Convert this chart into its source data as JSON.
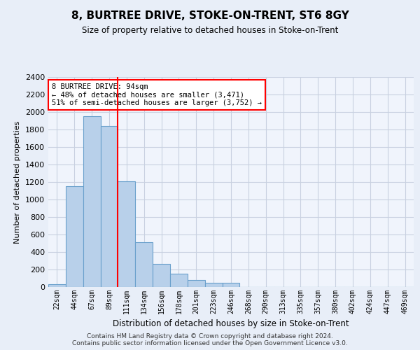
{
  "title": "8, BURTREE DRIVE, STOKE-ON-TRENT, ST6 8GY",
  "subtitle": "Size of property relative to detached houses in Stoke-on-Trent",
  "xlabel": "Distribution of detached houses by size in Stoke-on-Trent",
  "ylabel": "Number of detached properties",
  "bar_labels": [
    "22sqm",
    "44sqm",
    "67sqm",
    "89sqm",
    "111sqm",
    "134sqm",
    "156sqm",
    "178sqm",
    "201sqm",
    "223sqm",
    "246sqm",
    "268sqm",
    "290sqm",
    "313sqm",
    "335sqm",
    "357sqm",
    "380sqm",
    "402sqm",
    "424sqm",
    "447sqm",
    "469sqm"
  ],
  "bar_values": [
    30,
    1150,
    1950,
    1840,
    1210,
    515,
    265,
    155,
    80,
    50,
    45,
    0,
    0,
    0,
    0,
    0,
    0,
    0,
    0,
    0,
    0
  ],
  "bar_color": "#b8d0ea",
  "bar_edge_color": "#6aa0cc",
  "vline_x": 3.5,
  "vline_color": "red",
  "annotation_text": "8 BURTREE DRIVE: 94sqm\n← 48% of detached houses are smaller (3,471)\n51% of semi-detached houses are larger (3,752) →",
  "annotation_box_color": "white",
  "annotation_box_edge_color": "red",
  "ylim": [
    0,
    2400
  ],
  "yticks": [
    0,
    200,
    400,
    600,
    800,
    1000,
    1200,
    1400,
    1600,
    1800,
    2000,
    2200,
    2400
  ],
  "footer": "Contains HM Land Registry data © Crown copyright and database right 2024.\nContains public sector information licensed under the Open Government Licence v3.0.",
  "bg_color": "#e8eef8",
  "plot_bg_color": "#f0f4fc",
  "grid_color": "#c8d0e0",
  "title_fontsize": 11,
  "subtitle_fontsize": 8.5,
  "ylabel_fontsize": 8,
  "xlabel_fontsize": 8.5,
  "footer_fontsize": 6.5
}
